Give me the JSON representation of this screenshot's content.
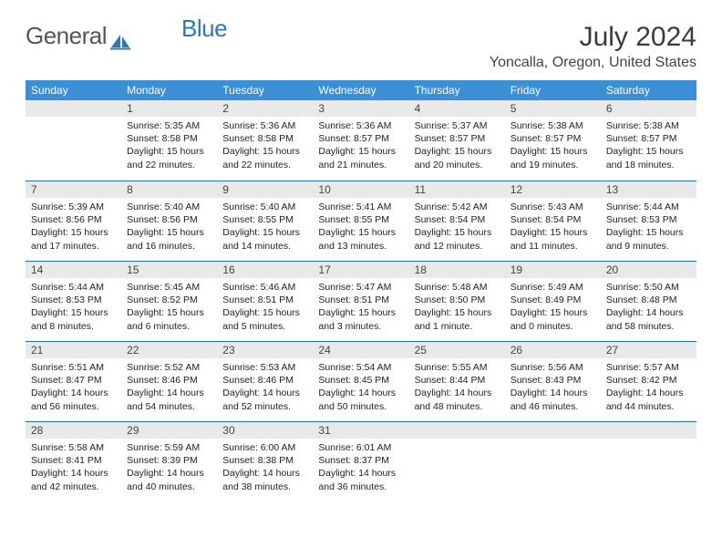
{
  "logo": {
    "part1": "General",
    "part2": "Blue"
  },
  "title": "July 2024",
  "location": "Yoncalla, Oregon, United States",
  "header_bg": "#3b8fd4",
  "day_bg": "#e9e9e9",
  "rule_color": "#2a6aa8",
  "weekdays": [
    "Sunday",
    "Monday",
    "Tuesday",
    "Wednesday",
    "Thursday",
    "Friday",
    "Saturday"
  ],
  "weeks": [
    [
      null,
      {
        "n": "1",
        "sr": "5:35 AM",
        "ss": "8:58 PM",
        "dl": "15 hours and 22 minutes."
      },
      {
        "n": "2",
        "sr": "5:36 AM",
        "ss": "8:58 PM",
        "dl": "15 hours and 22 minutes."
      },
      {
        "n": "3",
        "sr": "5:36 AM",
        "ss": "8:57 PM",
        "dl": "15 hours and 21 minutes."
      },
      {
        "n": "4",
        "sr": "5:37 AM",
        "ss": "8:57 PM",
        "dl": "15 hours and 20 minutes."
      },
      {
        "n": "5",
        "sr": "5:38 AM",
        "ss": "8:57 PM",
        "dl": "15 hours and 19 minutes."
      },
      {
        "n": "6",
        "sr": "5:38 AM",
        "ss": "8:57 PM",
        "dl": "15 hours and 18 minutes."
      }
    ],
    [
      {
        "n": "7",
        "sr": "5:39 AM",
        "ss": "8:56 PM",
        "dl": "15 hours and 17 minutes."
      },
      {
        "n": "8",
        "sr": "5:40 AM",
        "ss": "8:56 PM",
        "dl": "15 hours and 16 minutes."
      },
      {
        "n": "9",
        "sr": "5:40 AM",
        "ss": "8:55 PM",
        "dl": "15 hours and 14 minutes."
      },
      {
        "n": "10",
        "sr": "5:41 AM",
        "ss": "8:55 PM",
        "dl": "15 hours and 13 minutes."
      },
      {
        "n": "11",
        "sr": "5:42 AM",
        "ss": "8:54 PM",
        "dl": "15 hours and 12 minutes."
      },
      {
        "n": "12",
        "sr": "5:43 AM",
        "ss": "8:54 PM",
        "dl": "15 hours and 11 minutes."
      },
      {
        "n": "13",
        "sr": "5:44 AM",
        "ss": "8:53 PM",
        "dl": "15 hours and 9 minutes."
      }
    ],
    [
      {
        "n": "14",
        "sr": "5:44 AM",
        "ss": "8:53 PM",
        "dl": "15 hours and 8 minutes."
      },
      {
        "n": "15",
        "sr": "5:45 AM",
        "ss": "8:52 PM",
        "dl": "15 hours and 6 minutes."
      },
      {
        "n": "16",
        "sr": "5:46 AM",
        "ss": "8:51 PM",
        "dl": "15 hours and 5 minutes."
      },
      {
        "n": "17",
        "sr": "5:47 AM",
        "ss": "8:51 PM",
        "dl": "15 hours and 3 minutes."
      },
      {
        "n": "18",
        "sr": "5:48 AM",
        "ss": "8:50 PM",
        "dl": "15 hours and 1 minute."
      },
      {
        "n": "19",
        "sr": "5:49 AM",
        "ss": "8:49 PM",
        "dl": "15 hours and 0 minutes."
      },
      {
        "n": "20",
        "sr": "5:50 AM",
        "ss": "8:48 PM",
        "dl": "14 hours and 58 minutes."
      }
    ],
    [
      {
        "n": "21",
        "sr": "5:51 AM",
        "ss": "8:47 PM",
        "dl": "14 hours and 56 minutes."
      },
      {
        "n": "22",
        "sr": "5:52 AM",
        "ss": "8:46 PM",
        "dl": "14 hours and 54 minutes."
      },
      {
        "n": "23",
        "sr": "5:53 AM",
        "ss": "8:46 PM",
        "dl": "14 hours and 52 minutes."
      },
      {
        "n": "24",
        "sr": "5:54 AM",
        "ss": "8:45 PM",
        "dl": "14 hours and 50 minutes."
      },
      {
        "n": "25",
        "sr": "5:55 AM",
        "ss": "8:44 PM",
        "dl": "14 hours and 48 minutes."
      },
      {
        "n": "26",
        "sr": "5:56 AM",
        "ss": "8:43 PM",
        "dl": "14 hours and 46 minutes."
      },
      {
        "n": "27",
        "sr": "5:57 AM",
        "ss": "8:42 PM",
        "dl": "14 hours and 44 minutes."
      }
    ],
    [
      {
        "n": "28",
        "sr": "5:58 AM",
        "ss": "8:41 PM",
        "dl": "14 hours and 42 minutes."
      },
      {
        "n": "29",
        "sr": "5:59 AM",
        "ss": "8:39 PM",
        "dl": "14 hours and 40 minutes."
      },
      {
        "n": "30",
        "sr": "6:00 AM",
        "ss": "8:38 PM",
        "dl": "14 hours and 38 minutes."
      },
      {
        "n": "31",
        "sr": "6:01 AM",
        "ss": "8:37 PM",
        "dl": "14 hours and 36 minutes."
      },
      null,
      null,
      null
    ]
  ],
  "labels": {
    "sunrise": "Sunrise:",
    "sunset": "Sunset:",
    "daylight": "Daylight:"
  }
}
